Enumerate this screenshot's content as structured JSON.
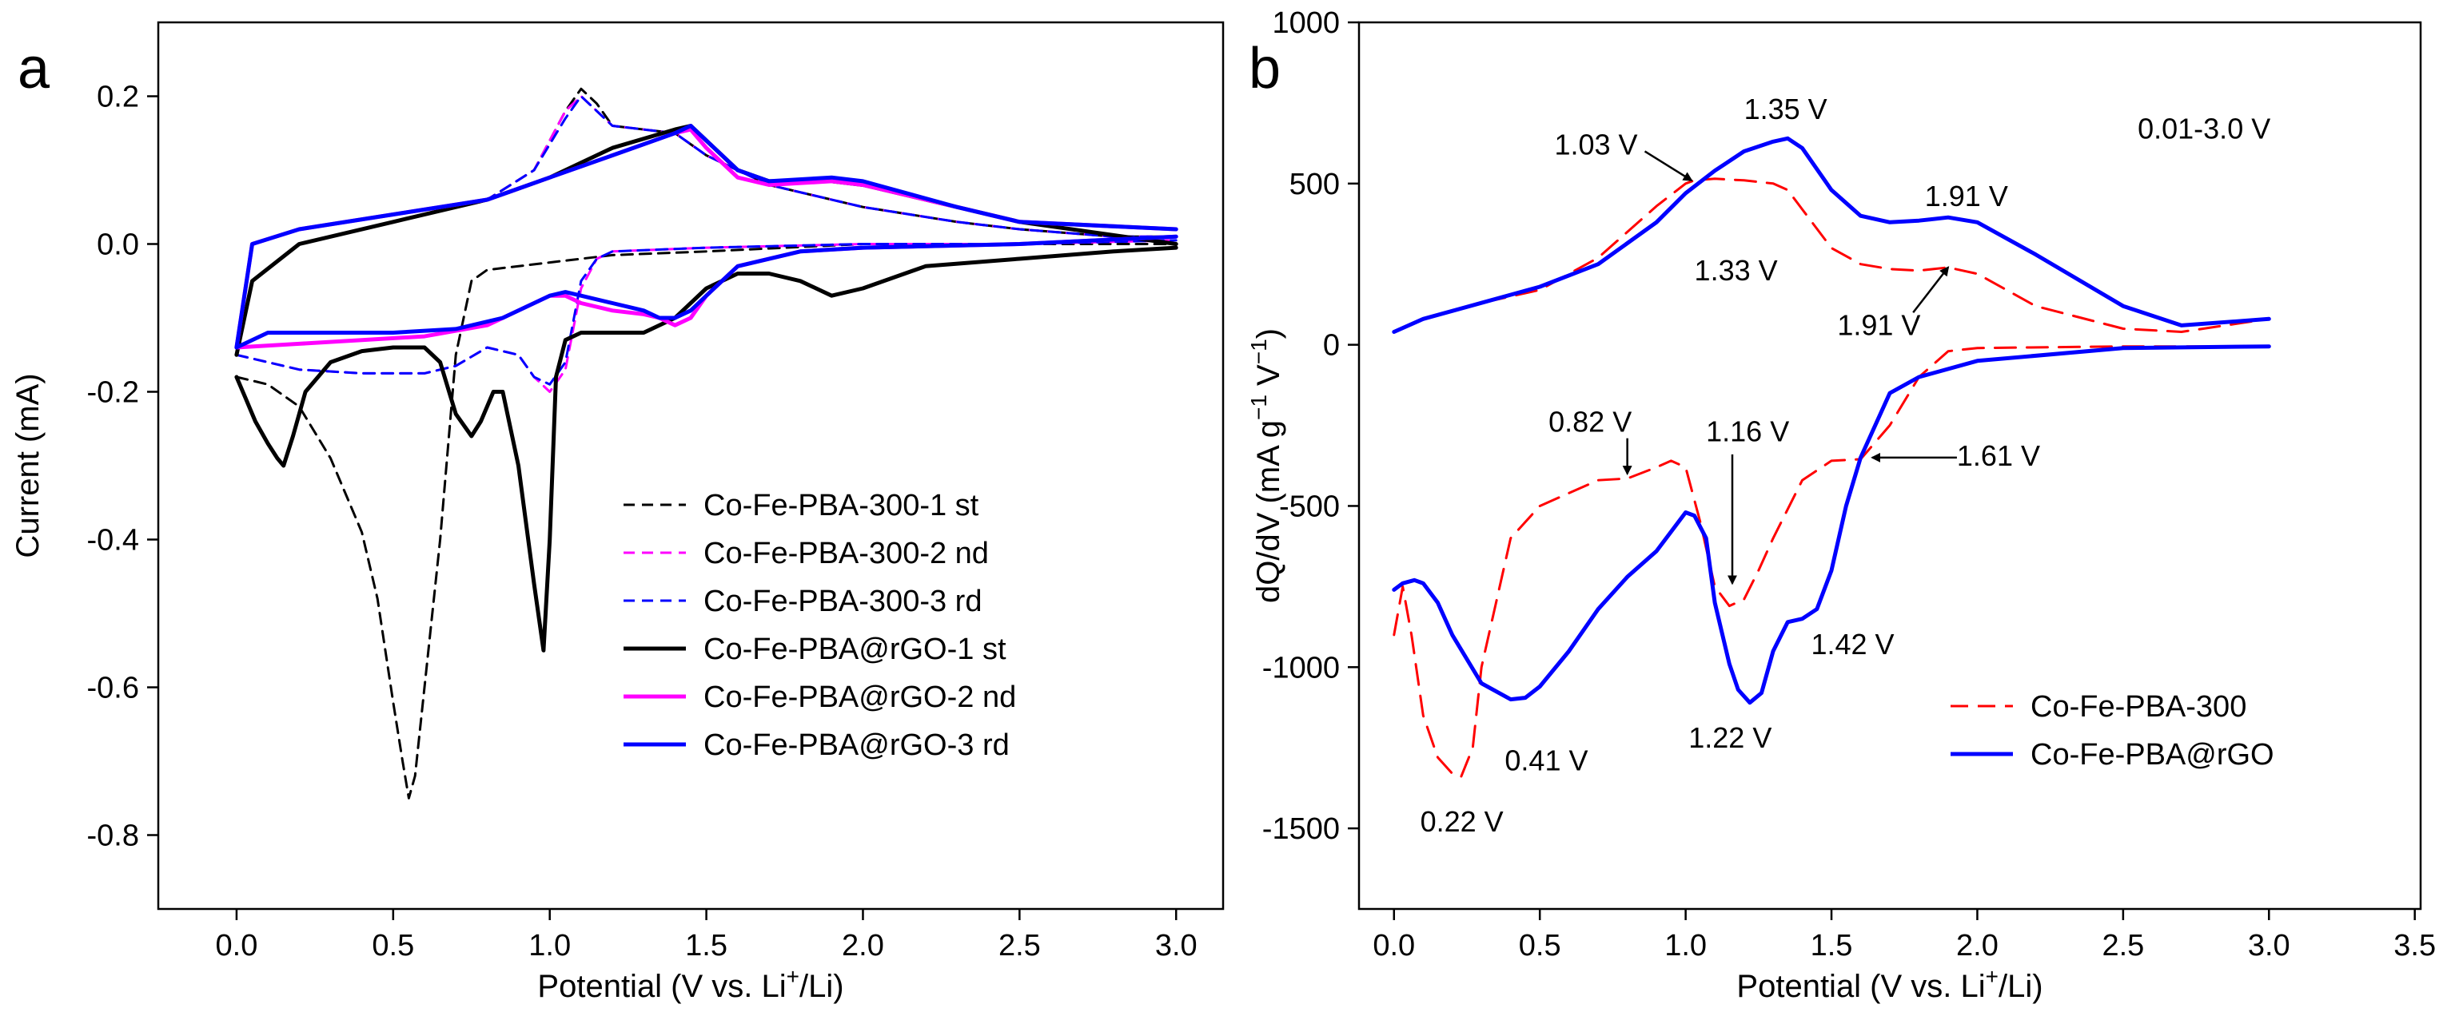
{
  "chart_data": [
    {
      "type": "line",
      "panel_label": "a",
      "title": "",
      "xlabel": "Potential (V vs. Li",
      "xlabel_sup": "+",
      "xlabel_tail": "/Li)",
      "ylabel": "Current (mA)",
      "xlim": [
        -0.25,
        3.15
      ],
      "ylim": [
        -0.9,
        0.3
      ],
      "xticks": [
        0.0,
        0.5,
        1.0,
        1.5,
        2.0,
        2.5,
        3.0
      ],
      "xtick_labels": [
        "0.0",
        "0.5",
        "1.0",
        "1.5",
        "2.0",
        "2.5",
        "3.0"
      ],
      "yticks": [
        0.2,
        0.0,
        -0.2,
        -0.4,
        -0.6,
        -0.8
      ],
      "ytick_labels": [
        "0.2",
        "0.0",
        "-0.2",
        "-0.4",
        "-0.6",
        "-0.8"
      ],
      "grid": false,
      "legend_position": "bottom-right",
      "series": [
        {
          "name": "Co-Fe-PBA-300-1 st",
          "color": "#000000",
          "dash": true,
          "x": [
            0.0,
            0.05,
            0.1,
            0.2,
            0.3,
            0.4,
            0.45,
            0.5,
            0.53,
            0.55,
            0.57,
            0.6,
            0.65,
            0.7,
            0.75,
            0.8,
            1.0,
            1.2,
            1.5,
            2.0,
            2.5,
            3.0
          ],
          "y": [
            -0.18,
            -0.185,
            -0.19,
            -0.22,
            -0.29,
            -0.39,
            -0.48,
            -0.62,
            -0.7,
            -0.75,
            -0.72,
            -0.6,
            -0.4,
            -0.15,
            -0.05,
            -0.035,
            -0.025,
            -0.015,
            -0.01,
            0.0,
            0.0,
            0.0
          ],
          "x2": [
            0.0,
            0.05,
            0.2,
            0.5,
            0.8,
            0.95,
            1.05,
            1.1,
            1.15,
            1.2,
            1.3,
            1.4,
            1.5,
            1.7,
            2.0,
            2.3,
            2.5,
            2.8,
            3.0
          ],
          "y2": [
            -0.15,
            0.0,
            0.02,
            0.04,
            0.06,
            0.1,
            0.18,
            0.21,
            0.19,
            0.16,
            0.155,
            0.15,
            0.12,
            0.08,
            0.05,
            0.03,
            0.02,
            0.01,
            0.01
          ]
        },
        {
          "name": "Co-Fe-PBA-300-2 nd",
          "color": "#ff00ff",
          "dash": true,
          "x": [
            0.0,
            0.2,
            0.4,
            0.6,
            0.7,
            0.8,
            0.9,
            0.95,
            1.0,
            1.05,
            1.1,
            1.15,
            1.2,
            1.5,
            2.0,
            2.5,
            3.0
          ],
          "y": [
            -0.15,
            -0.17,
            -0.175,
            -0.175,
            -0.165,
            -0.14,
            -0.15,
            -0.18,
            -0.2,
            -0.17,
            -0.06,
            -0.02,
            -0.01,
            -0.005,
            0.0,
            0.0,
            0.005
          ],
          "x2": [
            0.0,
            0.05,
            0.2,
            0.5,
            0.8,
            0.95,
            1.05,
            1.1,
            1.15,
            1.2,
            1.3,
            1.4,
            1.5,
            1.7,
            2.0,
            2.3,
            2.5,
            2.8,
            3.0
          ],
          "y2": [
            -0.15,
            0.0,
            0.02,
            0.04,
            0.06,
            0.1,
            0.18,
            0.2,
            0.18,
            0.16,
            0.155,
            0.15,
            0.12,
            0.08,
            0.05,
            0.03,
            0.02,
            0.01,
            0.01
          ]
        },
        {
          "name": "Co-Fe-PBA-300-3 rd",
          "color": "#0000ff",
          "dash": true,
          "x": [
            0.0,
            0.2,
            0.4,
            0.6,
            0.7,
            0.8,
            0.9,
            0.95,
            1.0,
            1.05,
            1.1,
            1.15,
            1.2,
            1.5,
            2.0,
            2.5,
            3.0
          ],
          "y": [
            -0.15,
            -0.17,
            -0.175,
            -0.175,
            -0.165,
            -0.14,
            -0.15,
            -0.18,
            -0.19,
            -0.16,
            -0.05,
            -0.02,
            -0.01,
            -0.005,
            0.0,
            0.0,
            0.005
          ],
          "x2": [
            0.0,
            0.05,
            0.2,
            0.5,
            0.8,
            0.95,
            1.05,
            1.1,
            1.15,
            1.2,
            1.3,
            1.4,
            1.5,
            1.7,
            2.0,
            2.3,
            2.5,
            2.8,
            3.0
          ],
          "y2": [
            -0.15,
            0.0,
            0.02,
            0.04,
            0.06,
            0.1,
            0.17,
            0.2,
            0.18,
            0.16,
            0.155,
            0.15,
            0.12,
            0.08,
            0.05,
            0.03,
            0.02,
            0.01,
            0.01
          ]
        },
        {
          "name": "Co-Fe-PBA@rGO-1 st",
          "color": "#000000",
          "dash": false,
          "x": [
            0.0,
            0.03,
            0.06,
            0.1,
            0.13,
            0.15,
            0.18,
            0.22,
            0.3,
            0.4,
            0.5,
            0.6,
            0.65,
            0.7,
            0.75,
            0.78,
            0.82,
            0.85,
            0.9,
            0.95,
            0.98,
            1.0,
            1.02,
            1.05,
            1.1,
            1.2,
            1.3,
            1.4,
            1.5,
            1.6,
            1.7,
            1.8,
            1.9,
            2.0,
            2.2,
            2.5,
            2.8,
            3.0
          ],
          "y": [
            -0.18,
            -0.21,
            -0.24,
            -0.27,
            -0.29,
            -0.3,
            -0.26,
            -0.2,
            -0.16,
            -0.145,
            -0.14,
            -0.14,
            -0.16,
            -0.23,
            -0.26,
            -0.24,
            -0.2,
            -0.2,
            -0.3,
            -0.46,
            -0.55,
            -0.4,
            -0.18,
            -0.13,
            -0.12,
            -0.12,
            -0.12,
            -0.1,
            -0.06,
            -0.04,
            -0.04,
            -0.05,
            -0.07,
            -0.06,
            -0.03,
            -0.02,
            -0.01,
            -0.005
          ],
          "x2": [
            0.0,
            0.05,
            0.2,
            0.5,
            0.8,
            1.0,
            1.2,
            1.4,
            1.45,
            1.5,
            1.6,
            1.7,
            1.9,
            2.0,
            2.3,
            2.5,
            3.0
          ],
          "y2": [
            -0.15,
            -0.05,
            0.0,
            0.03,
            0.06,
            0.09,
            0.13,
            0.155,
            0.16,
            0.14,
            0.1,
            0.085,
            0.085,
            0.08,
            0.05,
            0.03,
            0.0
          ]
        },
        {
          "name": "Co-Fe-PBA@rGO-2 nd",
          "color": "#ff00ff",
          "dash": false,
          "x": [
            0.0,
            0.2,
            0.4,
            0.6,
            0.8,
            0.9,
            1.0,
            1.05,
            1.1,
            1.2,
            1.3,
            1.35,
            1.4,
            1.45,
            1.5,
            1.6,
            1.8,
            2.0,
            2.5,
            3.0
          ],
          "y": [
            -0.14,
            -0.135,
            -0.13,
            -0.125,
            -0.11,
            -0.09,
            -0.07,
            -0.07,
            -0.08,
            -0.09,
            -0.095,
            -0.1,
            -0.11,
            -0.1,
            -0.07,
            -0.03,
            -0.01,
            -0.005,
            0.0,
            0.01
          ],
          "x2": [
            0.0,
            0.05,
            0.2,
            0.5,
            0.8,
            1.0,
            1.2,
            1.4,
            1.45,
            1.5,
            1.6,
            1.7,
            1.9,
            2.0,
            2.3,
            2.5,
            3.0
          ],
          "y2": [
            -0.14,
            0.0,
            0.02,
            0.04,
            0.06,
            0.09,
            0.12,
            0.15,
            0.155,
            0.13,
            0.09,
            0.08,
            0.085,
            0.08,
            0.05,
            0.03,
            0.02
          ]
        },
        {
          "name": "Co-Fe-PBA@rGO-3 rd",
          "color": "#0000ff",
          "dash": false,
          "x": [
            0.0,
            0.1,
            0.3,
            0.5,
            0.7,
            0.85,
            0.95,
            1.0,
            1.05,
            1.1,
            1.2,
            1.3,
            1.35,
            1.4,
            1.45,
            1.5,
            1.6,
            1.8,
            2.0,
            2.5,
            3.0
          ],
          "y": [
            -0.14,
            -0.12,
            -0.12,
            -0.12,
            -0.115,
            -0.1,
            -0.08,
            -0.07,
            -0.065,
            -0.07,
            -0.08,
            -0.09,
            -0.1,
            -0.1,
            -0.09,
            -0.07,
            -0.03,
            -0.01,
            -0.005,
            0.0,
            0.01
          ],
          "x2": [
            0.0,
            0.05,
            0.2,
            0.5,
            0.8,
            1.0,
            1.2,
            1.4,
            1.45,
            1.5,
            1.6,
            1.7,
            1.9,
            2.0,
            2.3,
            2.5,
            3.0
          ],
          "y2": [
            -0.14,
            0.0,
            0.02,
            0.04,
            0.06,
            0.09,
            0.12,
            0.15,
            0.16,
            0.14,
            0.1,
            0.085,
            0.09,
            0.085,
            0.05,
            0.03,
            0.02
          ]
        }
      ]
    },
    {
      "type": "line",
      "panel_label": "b",
      "title": "",
      "xlabel": "Potential (V vs. Li",
      "xlabel_sup": "+",
      "xlabel_tail": "/Li)",
      "ylabel": "dQ/dV (mA g",
      "ylabel_sup1": "−1",
      "ylabel_mid": " V",
      "ylabel_sup2": "−1",
      "ylabel_tail": ")",
      "xlim": [
        -0.12,
        3.52
      ],
      "ylim": [
        -1750,
        1000
      ],
      "xticks": [
        0.0,
        0.5,
        1.0,
        1.5,
        2.0,
        2.5,
        3.0,
        3.5
      ],
      "xtick_labels": [
        "0.0",
        "0.5",
        "1.0",
        "1.5",
        "2.0",
        "2.5",
        "3.0",
        "3.5"
      ],
      "yticks": [
        1000,
        500,
        0,
        -500,
        -1000,
        -1500
      ],
      "ytick_labels": [
        "1000",
        "500",
        "0",
        "-500",
        "-1000",
        "-1500"
      ],
      "grid": false,
      "legend_position": "bottom-right",
      "range_note": "0.01-3.0 V",
      "series": [
        {
          "name": "Co-Fe-PBA-300",
          "color": "#ff0000",
          "dash": true,
          "x": [
            0.0,
            0.03,
            0.06,
            0.1,
            0.15,
            0.2,
            0.23,
            0.27,
            0.3,
            0.4,
            0.5,
            0.6,
            0.7,
            0.8,
            0.9,
            0.95,
            1.0,
            1.05,
            1.1,
            1.15,
            1.2,
            1.25,
            1.3,
            1.4,
            1.5,
            1.6,
            1.7,
            1.8,
            1.9,
            2.0,
            2.5,
            3.0
          ],
          "y": [
            -900,
            -750,
            -900,
            -1150,
            -1280,
            -1330,
            -1340,
            -1250,
            -1000,
            -600,
            -500,
            -460,
            -420,
            -415,
            -380,
            -360,
            -380,
            -550,
            -750,
            -810,
            -790,
            -700,
            -600,
            -420,
            -360,
            -355,
            -250,
            -100,
            -20,
            -10,
            -5,
            -5
          ],
          "x2": [
            0.0,
            0.1,
            0.3,
            0.5,
            0.7,
            0.9,
            1.0,
            1.03,
            1.1,
            1.2,
            1.3,
            1.35,
            1.4,
            1.5,
            1.6,
            1.7,
            1.8,
            1.9,
            2.0,
            2.2,
            2.5,
            2.7,
            3.0
          ],
          "y2": [
            40,
            80,
            130,
            170,
            270,
            430,
            500,
            510,
            515,
            510,
            500,
            480,
            420,
            300,
            250,
            235,
            230,
            240,
            220,
            120,
            50,
            40,
            80
          ]
        },
        {
          "name": "Co-Fe-PBA@rGO",
          "color": "#0000ff",
          "dash": false,
          "x": [
            0.0,
            0.03,
            0.07,
            0.1,
            0.15,
            0.2,
            0.3,
            0.4,
            0.45,
            0.5,
            0.6,
            0.7,
            0.8,
            0.9,
            1.0,
            1.03,
            1.07,
            1.1,
            1.15,
            1.18,
            1.22,
            1.26,
            1.3,
            1.35,
            1.4,
            1.45,
            1.5,
            1.55,
            1.6,
            1.7,
            1.8,
            2.0,
            2.5,
            3.0
          ],
          "y": [
            -760,
            -740,
            -730,
            -740,
            -800,
            -900,
            -1050,
            -1100,
            -1095,
            -1060,
            -950,
            -820,
            -720,
            -640,
            -520,
            -530,
            -600,
            -800,
            -990,
            -1070,
            -1110,
            -1080,
            -950,
            -860,
            -850,
            -820,
            -700,
            -500,
            -350,
            -150,
            -100,
            -50,
            -10,
            -5
          ],
          "x2": [
            0.0,
            0.1,
            0.3,
            0.5,
            0.7,
            0.9,
            1.0,
            1.1,
            1.2,
            1.3,
            1.35,
            1.4,
            1.5,
            1.6,
            1.7,
            1.8,
            1.9,
            2.0,
            2.2,
            2.5,
            2.7,
            3.0
          ],
          "y2": [
            40,
            80,
            130,
            180,
            250,
            380,
            470,
            540,
            600,
            630,
            640,
            610,
            480,
            400,
            380,
            385,
            395,
            380,
            280,
            120,
            60,
            80
          ]
        }
      ],
      "annotations": [
        {
          "text": "1.03 V",
          "arrow": true
        },
        {
          "text": "1.35 V",
          "arrow": false
        },
        {
          "text": "1.91 V",
          "arrow": false
        },
        {
          "text": "1.33 V",
          "arrow": false
        },
        {
          "text": "1.91 V",
          "arrow": true
        },
        {
          "text": "0.82 V",
          "arrow": true
        },
        {
          "text": "1.16 V",
          "arrow": true
        },
        {
          "text": "1.61 V",
          "arrow": true
        },
        {
          "text": "1.42 V",
          "arrow": false
        },
        {
          "text": "1.22 V",
          "arrow": false
        },
        {
          "text": "0.41 V",
          "arrow": false
        },
        {
          "text": "0.22 V",
          "arrow": false
        }
      ]
    }
  ]
}
